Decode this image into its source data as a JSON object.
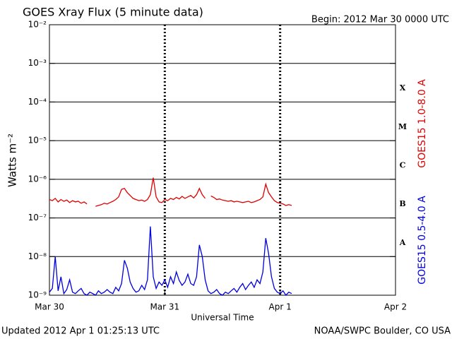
{
  "chart_data": {
    "type": "line",
    "title": "GOES Xray Flux (5 minute data)",
    "subtitle": "Begin:  2012 Mar 30 0000 UTC",
    "xlabel": "Universal Time",
    "ylabel": "Watts m⁻²",
    "footer_left": "Updated 2012 Apr  1 01:25:13 UTC",
    "footer_right": "NOAA/SWPC Boulder, CO USA",
    "flare_classes": [
      "A",
      "B",
      "C",
      "M",
      "X"
    ],
    "log_scale": true,
    "grid": true,
    "xlim": [
      0,
      3
    ],
    "xticks": [
      {
        "value": 0,
        "label": "Mar 30"
      },
      {
        "value": 1,
        "label": "Mar 31"
      },
      {
        "value": 2,
        "label": "Apr 1"
      },
      {
        "value": 3,
        "label": "Apr 2"
      }
    ],
    "ylim": [
      1e-09,
      0.01
    ],
    "yticks": [
      {
        "value": 1e-09,
        "label": "10⁻⁹"
      },
      {
        "value": 1e-08,
        "label": "10⁻⁸"
      },
      {
        "value": 1e-07,
        "label": "10⁻⁷"
      },
      {
        "value": 1e-06,
        "label": "10⁻⁶"
      },
      {
        "value": 1e-05,
        "label": "10⁻⁵"
      },
      {
        "value": 0.0001,
        "label": "10⁻⁴"
      },
      {
        "value": 0.001,
        "label": "10⁻³"
      },
      {
        "value": 0.01,
        "label": "10⁻²"
      }
    ],
    "x": [
      0,
      0.025,
      0.05,
      0.075,
      0.1,
      0.125,
      0.15,
      0.175,
      0.2,
      0.225,
      0.25,
      0.275,
      0.3,
      0.325,
      0.35,
      0.375,
      0.4,
      0.425,
      0.45,
      0.475,
      0.5,
      0.525,
      0.55,
      0.575,
      0.6,
      0.625,
      0.65,
      0.675,
      0.7,
      0.725,
      0.75,
      0.775,
      0.8,
      0.825,
      0.85,
      0.875,
      0.9,
      0.925,
      0.95,
      0.975,
      1,
      1.025,
      1.05,
      1.075,
      1.1,
      1.125,
      1.15,
      1.175,
      1.2,
      1.225,
      1.25,
      1.275,
      1.3,
      1.325,
      1.35,
      1.375,
      1.4,
      1.425,
      1.45,
      1.475,
      1.5,
      1.525,
      1.55,
      1.575,
      1.6,
      1.625,
      1.65,
      1.675,
      1.7,
      1.725,
      1.75,
      1.775,
      1.8,
      1.825,
      1.85,
      1.875,
      1.9,
      1.925,
      1.95,
      1.975,
      2,
      2.025,
      2.05,
      2.075,
      2.1
    ],
    "series": [
      {
        "name": "GOES15 1.0-8.0 A",
        "color": "#e00000",
        "values": [
          3e-07,
          2.8e-07,
          3.2e-07,
          2.6e-07,
          3e-07,
          2.7e-07,
          2.9e-07,
          2.5e-07,
          2.8e-07,
          2.6e-07,
          2.7e-07,
          2.4e-07,
          2.6e-07,
          2.3e-07,
          null,
          null,
          2e-07,
          2.1e-07,
          2.2e-07,
          2.4e-07,
          2.3e-07,
          2.5e-07,
          2.7e-07,
          3e-07,
          3.5e-07,
          5.5e-07,
          5.8e-07,
          4.5e-07,
          3.8e-07,
          3.2e-07,
          3e-07,
          2.8e-07,
          2.9e-07,
          2.7e-07,
          3e-07,
          4e-07,
          1.1e-06,
          3.5e-07,
          2.6e-07,
          2.5e-07,
          3e-07,
          2.8e-07,
          3.2e-07,
          3e-07,
          3.4e-07,
          3.1e-07,
          3.6e-07,
          3.2e-07,
          3.5e-07,
          3.8e-07,
          3.3e-07,
          4e-07,
          5.8e-07,
          4e-07,
          3.2e-07,
          null,
          3.7e-07,
          3.4e-07,
          3e-07,
          3.1e-07,
          2.9e-07,
          2.8e-07,
          2.7e-07,
          2.8e-07,
          2.6e-07,
          2.7e-07,
          2.6e-07,
          2.5e-07,
          2.6e-07,
          2.7e-07,
          2.5e-07,
          2.6e-07,
          2.8e-07,
          3e-07,
          3.5e-07,
          7.5e-07,
          4.5e-07,
          3.5e-07,
          2.8e-07,
          2.5e-07,
          2.4e-07,
          2.3e-07,
          2.1e-07,
          2.2e-07,
          2.1e-07
        ]
      },
      {
        "name": "GOES15 0.5-4.0 A",
        "color": "#0000e0",
        "values": [
          1.2e-09,
          1.5e-09,
          1e-08,
          1.3e-09,
          3e-09,
          1.1e-09,
          1.4e-09,
          2.5e-09,
          1.2e-09,
          1.1e-09,
          1.3e-09,
          1.5e-09,
          1.1e-09,
          1e-09,
          1.2e-09,
          1.1e-09,
          1e-09,
          1.3e-09,
          1.1e-09,
          1.2e-09,
          1.4e-09,
          1.2e-09,
          1.1e-09,
          1.6e-09,
          1.3e-09,
          2e-09,
          8e-09,
          5e-09,
          2.2e-09,
          1.5e-09,
          1.2e-09,
          1.3e-09,
          1.8e-09,
          1.4e-09,
          2.5e-09,
          6e-08,
          3e-09,
          1.5e-09,
          2.2e-09,
          1.8e-09,
          2.5e-09,
          1.6e-09,
          3e-09,
          2e-09,
          4e-09,
          2.4e-09,
          1.8e-09,
          2.2e-09,
          3.5e-09,
          2e-09,
          1.8e-09,
          3e-09,
          2e-08,
          1e-08,
          2.5e-09,
          1.3e-09,
          1.1e-09,
          1.2e-09,
          1.4e-09,
          1.1e-09,
          1e-09,
          1.2e-09,
          1.1e-09,
          1.3e-09,
          1.5e-09,
          1.2e-09,
          1.6e-09,
          2e-09,
          1.4e-09,
          1.8e-09,
          2.2e-09,
          1.6e-09,
          2.5e-09,
          2e-09,
          4e-09,
          3e-08,
          1.2e-08,
          3e-09,
          1.5e-09,
          1.2e-09,
          1.1e-09,
          1.3e-09,
          1e-09,
          1.2e-09,
          1.1e-09
        ]
      }
    ]
  }
}
